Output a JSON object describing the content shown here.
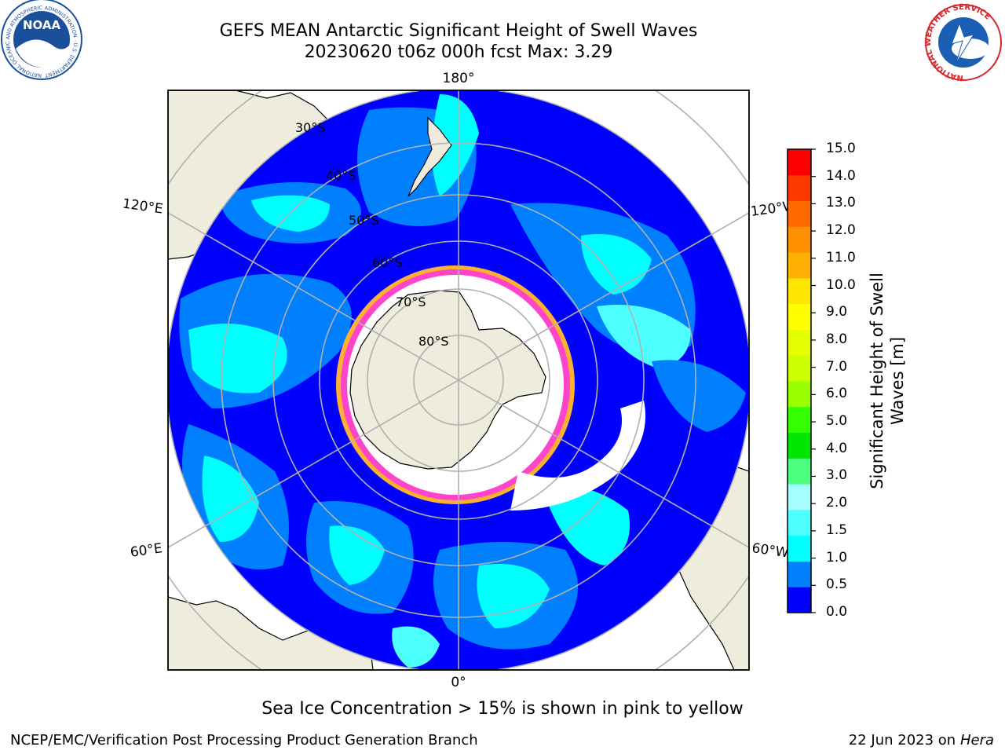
{
  "header": {
    "title_line1": "GEFS MEAN Antarctic Significant Height of Swell Waves",
    "title_line2": "20230620 t06z 000h fcst   Max: 3.29"
  },
  "logos": {
    "left": {
      "name": "noaa-logo",
      "text": "NOAA",
      "ring_text": "NATIONAL OCEANIC AND ATMOSPHERIC ADMINISTRATION · U.S. DEPARTMENT OF COMMERCE",
      "color": "#1a4f9c"
    },
    "right": {
      "name": "nws-logo",
      "ring_text": "NATIONAL WEATHER SERVICE",
      "color": "#d8262b"
    }
  },
  "map": {
    "projection": "south-polar-stereographic",
    "longitude_labels": {
      "top": "180°",
      "upper_left": "120°E",
      "upper_right": "120°W",
      "lower_left": "60°E",
      "lower_right": "60°W",
      "bottom": "0°"
    },
    "latitude_labels": [
      "30°S",
      "40°S",
      "50°S",
      "60°S",
      "70°S",
      "80°S"
    ],
    "colors": {
      "land": "#eeecdc",
      "ice_interior": "#ffffff",
      "ice_edge": "#ff44cc",
      "ice_edge_outer": "#ffb030",
      "ocean_low": "#0000ff",
      "ocean_mid": "#0080ff",
      "ocean_high": "#00ffff",
      "grid": "#b0b0b0"
    }
  },
  "colorbar": {
    "label": "Significant Height of Swell Waves [m]",
    "label_line1": "Significant Height of Swell",
    "label_line2": "Waves [m]",
    "ticks": [
      "15.0",
      "14.0",
      "13.0",
      "12.0",
      "11.0",
      "10.0",
      "9.0",
      "8.0",
      "7.0",
      "6.0",
      "5.0",
      "4.0",
      "3.0",
      "2.0",
      "1.5",
      "1.0",
      "0.5",
      "0.0"
    ],
    "colors": [
      "#0000ff",
      "#0080ff",
      "#00ffff",
      "#4dffff",
      "#a6ffff",
      "#4dff80",
      "#00e600",
      "#33ff00",
      "#99ff00",
      "#ccff00",
      "#e6ff00",
      "#ffff00",
      "#ffe600",
      "#ffb000",
      "#ff9000",
      "#ff6a00",
      "#ff3a00",
      "#ff0000"
    ]
  },
  "footer": {
    "subtitle": "Sea Ice Concentration > 15% is shown in pink to yellow",
    "left": "NCEP/EMC/Verification Post Processing Product Generation Branch",
    "right_date": "22 Jun 2023 on",
    "right_system": "Hera"
  }
}
